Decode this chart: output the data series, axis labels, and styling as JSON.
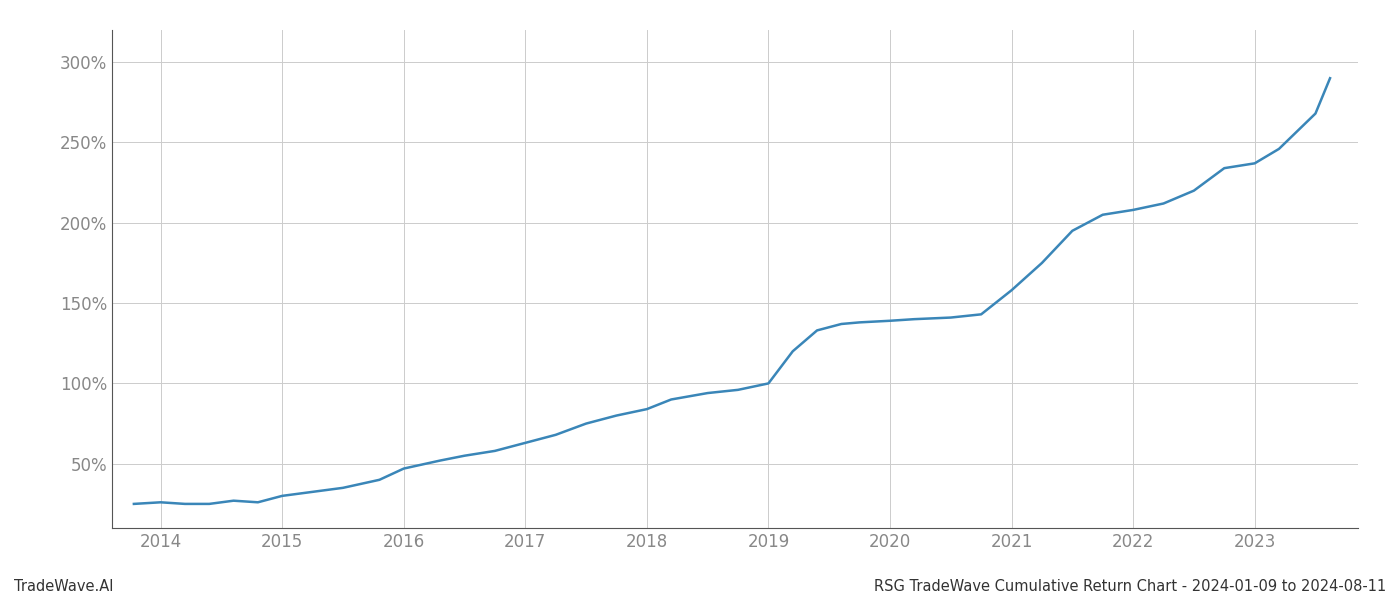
{
  "title_right": "RSG TradeWave Cumulative Return Chart - 2024-01-09 to 2024-08-11",
  "title_left": "TradeWave.AI",
  "line_color": "#3a86b8",
  "line_width": 1.8,
  "background_color": "#ffffff",
  "grid_color": "#cccccc",
  "tick_color": "#888888",
  "xlim": [
    2013.6,
    2023.85
  ],
  "ylim": [
    10,
    320
  ],
  "yticks": [
    50,
    100,
    150,
    200,
    250,
    300
  ],
  "xticks": [
    2014,
    2015,
    2016,
    2017,
    2018,
    2019,
    2020,
    2021,
    2022,
    2023
  ],
  "x": [
    2013.78,
    2014.0,
    2014.2,
    2014.4,
    2014.6,
    2014.8,
    2015.0,
    2015.2,
    2015.5,
    2015.8,
    2016.0,
    2016.3,
    2016.5,
    2016.75,
    2017.0,
    2017.25,
    2017.5,
    2017.75,
    2018.0,
    2018.2,
    2018.5,
    2018.75,
    2019.0,
    2019.2,
    2019.4,
    2019.6,
    2019.75,
    2020.0,
    2020.2,
    2020.5,
    2020.75,
    2021.0,
    2021.25,
    2021.5,
    2021.75,
    2022.0,
    2022.25,
    2022.5,
    2022.75,
    2023.0,
    2023.2,
    2023.5,
    2023.62
  ],
  "y": [
    25,
    26,
    25,
    25,
    27,
    26,
    30,
    32,
    35,
    40,
    47,
    52,
    55,
    58,
    63,
    68,
    75,
    80,
    84,
    90,
    94,
    96,
    100,
    120,
    133,
    137,
    138,
    139,
    140,
    141,
    143,
    158,
    175,
    195,
    205,
    208,
    212,
    220,
    234,
    237,
    246,
    268,
    290
  ],
  "figsize": [
    14.0,
    6.0
  ],
  "dpi": 100,
  "spine_color": "#555555",
  "label_fontsize": 10.5,
  "tick_fontsize": 12,
  "title_fontsize": 10.5
}
